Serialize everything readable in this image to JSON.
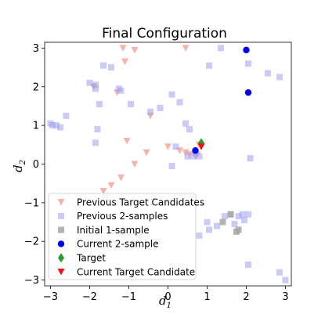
{
  "chart_data": {
    "type": "scatter",
    "title": "Final Configuration",
    "xlabel": "d",
    "xlabel_sub": "1",
    "ylabel": "d",
    "ylabel_sub": "2",
    "xlim": [
      -3.15,
      3.15
    ],
    "ylim": [
      -3.15,
      3.15
    ],
    "xticks": [
      -3,
      -2,
      -1,
      0,
      1,
      2,
      3
    ],
    "yticks": [
      -3,
      -2,
      -1,
      0,
      1,
      2,
      3
    ],
    "grid": false,
    "legend_position": "lower-left",
    "series": [
      {
        "name": "Previous Target Candidates",
        "marker": "triangle-down",
        "color": "#f08070",
        "opacity": 0.6,
        "points": [
          [
            -1.15,
            3.0
          ],
          [
            -0.85,
            2.95
          ],
          [
            0.45,
            3.0
          ],
          [
            -1.1,
            2.65
          ],
          [
            -1.9,
            2.0
          ],
          [
            -1.3,
            1.85
          ],
          [
            -0.45,
            1.25
          ],
          [
            -1.05,
            0.6
          ],
          [
            -0.55,
            0.3
          ],
          [
            -0.85,
            0.0
          ],
          [
            -1.2,
            -0.35
          ],
          [
            -1.45,
            -0.55
          ],
          [
            -1.65,
            -0.7
          ],
          [
            0.0,
            0.45
          ],
          [
            0.3,
            0.35
          ],
          [
            0.45,
            0.3
          ],
          [
            0.55,
            0.25
          ],
          [
            0.7,
            0.2
          ],
          [
            0.75,
            0.25
          ],
          [
            0.8,
            0.5
          ],
          [
            0.85,
            0.45
          ]
        ]
      },
      {
        "name": "Previous 2-samples",
        "marker": "square",
        "color": "#9ea0ee",
        "opacity": 0.55,
        "points": [
          [
            -3.0,
            1.05
          ],
          [
            -2.95,
            1.0
          ],
          [
            -2.85,
            1.0
          ],
          [
            -2.75,
            0.95
          ],
          [
            -2.6,
            1.25
          ],
          [
            -2.0,
            2.1
          ],
          [
            -1.85,
            2.05
          ],
          [
            -1.85,
            1.95
          ],
          [
            -1.65,
            2.55
          ],
          [
            -1.45,
            2.5
          ],
          [
            -1.25,
            1.95
          ],
          [
            -1.2,
            1.9
          ],
          [
            -1.75,
            1.55
          ],
          [
            -1.8,
            0.9
          ],
          [
            -1.85,
            0.55
          ],
          [
            -0.95,
            1.55
          ],
          [
            -0.45,
            1.35
          ],
          [
            -0.2,
            1.45
          ],
          [
            0.1,
            1.8
          ],
          [
            0.3,
            1.6
          ],
          [
            0.5,
            0.2
          ],
          [
            0.2,
            0.45
          ],
          [
            0.45,
            1.05
          ],
          [
            0.55,
            0.9
          ],
          [
            0.65,
            0.2
          ],
          [
            0.7,
            0.3
          ],
          [
            0.8,
            0.2
          ],
          [
            1.05,
            2.55
          ],
          [
            1.35,
            3.0
          ],
          [
            2.05,
            2.6
          ],
          [
            2.1,
            0.15
          ],
          [
            2.55,
            2.35
          ],
          [
            2.85,
            2.25
          ],
          [
            -1.6,
            -0.85
          ],
          [
            -0.75,
            -1.85
          ],
          [
            0.1,
            -0.05
          ],
          [
            1.05,
            -1.7
          ],
          [
            1.25,
            -1.6
          ],
          [
            1.45,
            -1.35
          ],
          [
            1.6,
            -1.3
          ],
          [
            1.7,
            -1.55
          ],
          [
            1.8,
            -1.35
          ],
          [
            1.9,
            -1.3
          ],
          [
            1.95,
            -1.45
          ],
          [
            2.05,
            -1.3
          ],
          [
            2.05,
            -2.6
          ],
          [
            2.85,
            -2.8
          ],
          [
            3.0,
            -3.0
          ],
          [
            0.8,
            -1.85
          ],
          [
            1.0,
            -1.5
          ]
        ]
      },
      {
        "name": "Initial 1-sample",
        "marker": "square",
        "color": "#a6a6a6",
        "opacity": 0.85,
        "points": [
          [
            1.4,
            -1.5
          ],
          [
            1.6,
            -1.3
          ],
          [
            1.75,
            -1.75
          ],
          [
            1.8,
            -1.7
          ]
        ]
      },
      {
        "name": "Current 2-sample",
        "marker": "circle",
        "color": "#0000ee",
        "opacity": 1,
        "points": [
          [
            2.0,
            2.95
          ],
          [
            2.05,
            1.85
          ],
          [
            0.7,
            0.35
          ]
        ]
      },
      {
        "name": "Target",
        "marker": "diamond",
        "color": "#2a9a2a",
        "opacity": 1,
        "points": [
          [
            0.85,
            0.55
          ]
        ]
      },
      {
        "name": "Current Target Candidate",
        "marker": "triangle-down",
        "color": "#ee1111",
        "opacity": 1,
        "points": [
          [
            0.85,
            0.45
          ]
        ]
      }
    ]
  }
}
